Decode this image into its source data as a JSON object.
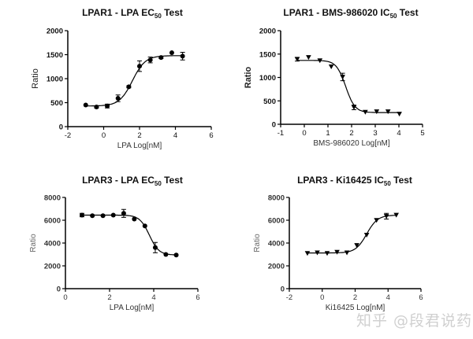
{
  "watermark": "知乎 @段君说药",
  "chart_data": [
    {
      "type": "scatter",
      "title": {
        "main": "LPAR1 - LPA EC",
        "sub": "50",
        "tail": " Test"
      },
      "xlabel": "LPA Log[nM]",
      "ylabel": "Ratio",
      "xlim": [
        -2,
        6
      ],
      "ylim": [
        0,
        2000
      ],
      "xticks": [
        -2,
        0,
        2,
        4,
        6
      ],
      "yticks": [
        0,
        500,
        1000,
        1500,
        2000
      ],
      "marker": "circle",
      "x": [
        -1,
        -0.4,
        0.2,
        0.8,
        1.4,
        2.0,
        2.6,
        3.2,
        3.8,
        4.4
      ],
      "y": [
        450,
        410,
        430,
        590,
        830,
        1260,
        1390,
        1440,
        1540,
        1470
      ],
      "err": [
        0,
        20,
        40,
        70,
        20,
        110,
        60,
        20,
        0,
        80
      ],
      "fit": {
        "bottom": 430,
        "top": 1480,
        "logX50": 1.6,
        "hill": 1.2
      }
    },
    {
      "type": "scatter",
      "title": {
        "main": "LPAR1 - BMS-986020 IC",
        "sub": "50",
        "tail": " Test"
      },
      "xlabel": "BMS-986020 Log[nM]",
      "ylabel": "Ratio",
      "xlim": [
        -1,
        5
      ],
      "ylim": [
        0,
        2000
      ],
      "xticks": [
        -1,
        0,
        1,
        2,
        3,
        4,
        5
      ],
      "yticks": [
        0,
        500,
        1000,
        1500,
        2000
      ],
      "marker": "triangle-down",
      "x": [
        -0.3,
        0.18,
        0.66,
        1.14,
        1.62,
        2.1,
        2.58,
        3.06,
        3.54,
        4.02
      ],
      "y": [
        1390,
        1430,
        1360,
        1230,
        1010,
        360,
        260,
        270,
        270,
        220
      ],
      "err": [
        40,
        0,
        0,
        0,
        80,
        50,
        0,
        0,
        0,
        0
      ],
      "fit": {
        "bottom": 250,
        "top": 1365,
        "logX50": 1.75,
        "hill": -2.2
      }
    },
    {
      "type": "scatter",
      "title": {
        "main": "LPAR3 - LPA EC",
        "sub": "50",
        "tail": " Test"
      },
      "xlabel": "LPA  Log[nM]",
      "ylabel": "Ratio",
      "xlim": [
        0,
        6
      ],
      "ylim": [
        0,
        8000
      ],
      "xticks": [
        0,
        2,
        4,
        6
      ],
      "yticks": [
        0,
        2000,
        4000,
        6000,
        8000
      ],
      "marker": "circle",
      "x": [
        0.75,
        1.22,
        1.7,
        2.17,
        2.64,
        3.12,
        3.6,
        4.07,
        4.55,
        5.02
      ],
      "y": [
        6450,
        6400,
        6400,
        6450,
        6600,
        6100,
        5500,
        3600,
        3000,
        2950
      ],
      "err": [
        150,
        0,
        0,
        0,
        350,
        0,
        0,
        450,
        0,
        0
      ],
      "fit": {
        "bottom": 2950,
        "top": 6450,
        "logX50": 3.8,
        "hill": -2.0
      }
    },
    {
      "type": "scatter",
      "title": {
        "main": "LPAR3 - Ki16425 IC",
        "sub": "50",
        "tail": " Test"
      },
      "xlabel": "Ki16425 Log[nM]",
      "ylabel": "Ratio",
      "xlim": [
        -2,
        6
      ],
      "ylim": [
        0,
        8000
      ],
      "xticks": [
        -2,
        0,
        2,
        4,
        6
      ],
      "yticks": [
        0,
        2000,
        4000,
        6000,
        8000
      ],
      "marker": "triangle-down",
      "x": [
        -0.9,
        -0.3,
        0.3,
        0.9,
        1.5,
        2.1,
        2.7,
        3.3,
        3.9,
        4.5
      ],
      "y": [
        3100,
        3150,
        3100,
        3200,
        3150,
        3800,
        4700,
        6000,
        6350,
        6450
      ],
      "err": [
        0,
        0,
        0,
        0,
        0,
        0,
        0,
        0,
        250,
        0
      ],
      "fit": {
        "bottom": 3130,
        "top": 6450,
        "logX50": 2.7,
        "hill": 1.3
      }
    }
  ]
}
